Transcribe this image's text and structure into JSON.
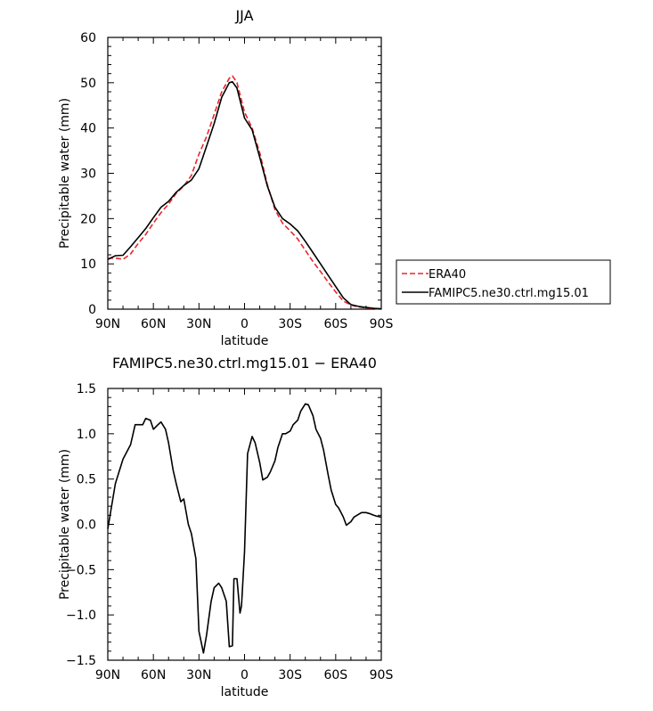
{
  "chart_data": [
    {
      "type": "line",
      "title": "JJA",
      "xlabel": "latitude",
      "ylabel": "Precipitable water (mm)",
      "xlim": [
        90,
        -90
      ],
      "ylim": [
        0,
        60
      ],
      "x_ticks": [
        90,
        60,
        30,
        0,
        -30,
        -60,
        -90
      ],
      "x_tick_labels": [
        "90N",
        "60N",
        "30N",
        "0",
        "30S",
        "60S",
        "90S"
      ],
      "y_ticks": [
        0,
        10,
        20,
        30,
        40,
        50,
        60
      ],
      "y_tick_labels": [
        "0",
        "10",
        "20",
        "30",
        "40",
        "50",
        "60"
      ],
      "legend": {
        "position": "right",
        "entries": [
          "ERA40",
          "FAMIPC5.ne30.ctrl.mg15.01"
        ]
      },
      "grid": false,
      "series": [
        {
          "name": "ERA40",
          "color": "#e8262b",
          "dash": true,
          "x": [
            90,
            85,
            80,
            75,
            70,
            65,
            60,
            55,
            50,
            45,
            40,
            35,
            30,
            25,
            20,
            15,
            10,
            8,
            5,
            0,
            -5,
            -10,
            -15,
            -20,
            -25,
            -30,
            -35,
            -40,
            -45,
            -50,
            -55,
            -60,
            -65,
            -70,
            -75,
            -80,
            -85,
            -90
          ],
          "values": [
            11.2,
            11.3,
            11.0,
            12.2,
            14.5,
            16.5,
            19.0,
            21.3,
            23.2,
            25.6,
            27.2,
            29.5,
            34.2,
            38.1,
            43.0,
            48.0,
            51.0,
            51.5,
            50.0,
            43.5,
            40.0,
            34.5,
            27.5,
            22.0,
            19.0,
            17.3,
            15.5,
            13.0,
            10.5,
            8.3,
            6.0,
            3.8,
            1.8,
            0.9,
            0.5,
            0.3,
            0.1,
            0.0
          ]
        },
        {
          "name": "FAMIPC5.ne30.ctrl.mg15.01",
          "color": "#000000",
          "dash": false,
          "x": [
            90,
            85,
            80,
            75,
            70,
            65,
            60,
            55,
            50,
            45,
            40,
            35,
            30,
            25,
            20,
            15,
            10,
            8,
            5,
            0,
            -5,
            -10,
            -15,
            -20,
            -25,
            -30,
            -35,
            -40,
            -45,
            -50,
            -55,
            -60,
            -65,
            -70,
            -75,
            -80,
            -85,
            -90
          ],
          "values": [
            11.0,
            11.8,
            11.9,
            13.8,
            15.8,
            17.8,
            20.2,
            22.5,
            23.8,
            25.8,
            27.3,
            28.5,
            31.0,
            36.0,
            41.0,
            46.8,
            50.0,
            50.2,
            48.8,
            42.2,
            39.6,
            33.5,
            27.2,
            22.5,
            20.0,
            18.8,
            17.3,
            15.0,
            12.5,
            10.0,
            7.5,
            5.0,
            2.5,
            1.0,
            0.6,
            0.4,
            0.2,
            0.1
          ]
        }
      ]
    },
    {
      "type": "line",
      "title": "FAMIPC5.ne30.ctrl.mg15.01 − ERA40",
      "xlabel": "latitude",
      "ylabel": "Precipitable water (mm)",
      "xlim": [
        90,
        -90
      ],
      "ylim": [
        -1.5,
        1.5
      ],
      "x_ticks": [
        90,
        60,
        30,
        0,
        -30,
        -60,
        -90
      ],
      "x_tick_labels": [
        "90N",
        "60N",
        "30N",
        "0",
        "30S",
        "60S",
        "90S"
      ],
      "y_ticks": [
        -1.5,
        -1.0,
        -0.5,
        0.0,
        0.5,
        1.0,
        1.5
      ],
      "y_tick_labels": [
        "−1.5",
        "−1.0",
        "−0.5",
        "0.0",
        "0.5",
        "1.0",
        "1.5"
      ],
      "grid": false,
      "series": [
        {
          "color": "#000000",
          "dash": false,
          "x": [
            90,
            88,
            85,
            80,
            75,
            72,
            70,
            67,
            65,
            62,
            60,
            57,
            55,
            52,
            50,
            47,
            45,
            42,
            40,
            37,
            35,
            32,
            30,
            27,
            25,
            22,
            20,
            17,
            15,
            12,
            10,
            8,
            7,
            5,
            3,
            2,
            0,
            -2,
            -5,
            -7,
            -10,
            -12,
            -15,
            -17,
            -20,
            -22,
            -25,
            -27,
            -30,
            -32,
            -35,
            -37,
            -40,
            -42,
            -45,
            -47,
            -50,
            -52,
            -55,
            -57,
            -60,
            -62,
            -65,
            -67,
            -70,
            -72,
            -75,
            -77,
            -80,
            -82,
            -85,
            -87,
            -90
          ],
          "values": [
            -0.05,
            0.15,
            0.45,
            0.72,
            0.88,
            1.1,
            1.1,
            1.1,
            1.17,
            1.15,
            1.05,
            1.1,
            1.13,
            1.05,
            0.9,
            0.6,
            0.45,
            0.25,
            0.28,
            0.0,
            -0.1,
            -0.38,
            -1.18,
            -1.42,
            -1.22,
            -0.85,
            -0.7,
            -0.65,
            -0.7,
            -0.85,
            -1.35,
            -1.34,
            -0.6,
            -0.6,
            -0.98,
            -0.9,
            -0.3,
            0.78,
            0.97,
            0.9,
            0.68,
            0.49,
            0.52,
            0.58,
            0.7,
            0.85,
            1.0,
            1.0,
            1.03,
            1.1,
            1.15,
            1.25,
            1.33,
            1.32,
            1.2,
            1.05,
            0.95,
            0.82,
            0.55,
            0.38,
            0.22,
            0.18,
            0.08,
            -0.01,
            0.03,
            0.08,
            0.11,
            0.13,
            0.13,
            0.12,
            0.1,
            0.09,
            0.08
          ]
        }
      ]
    }
  ]
}
